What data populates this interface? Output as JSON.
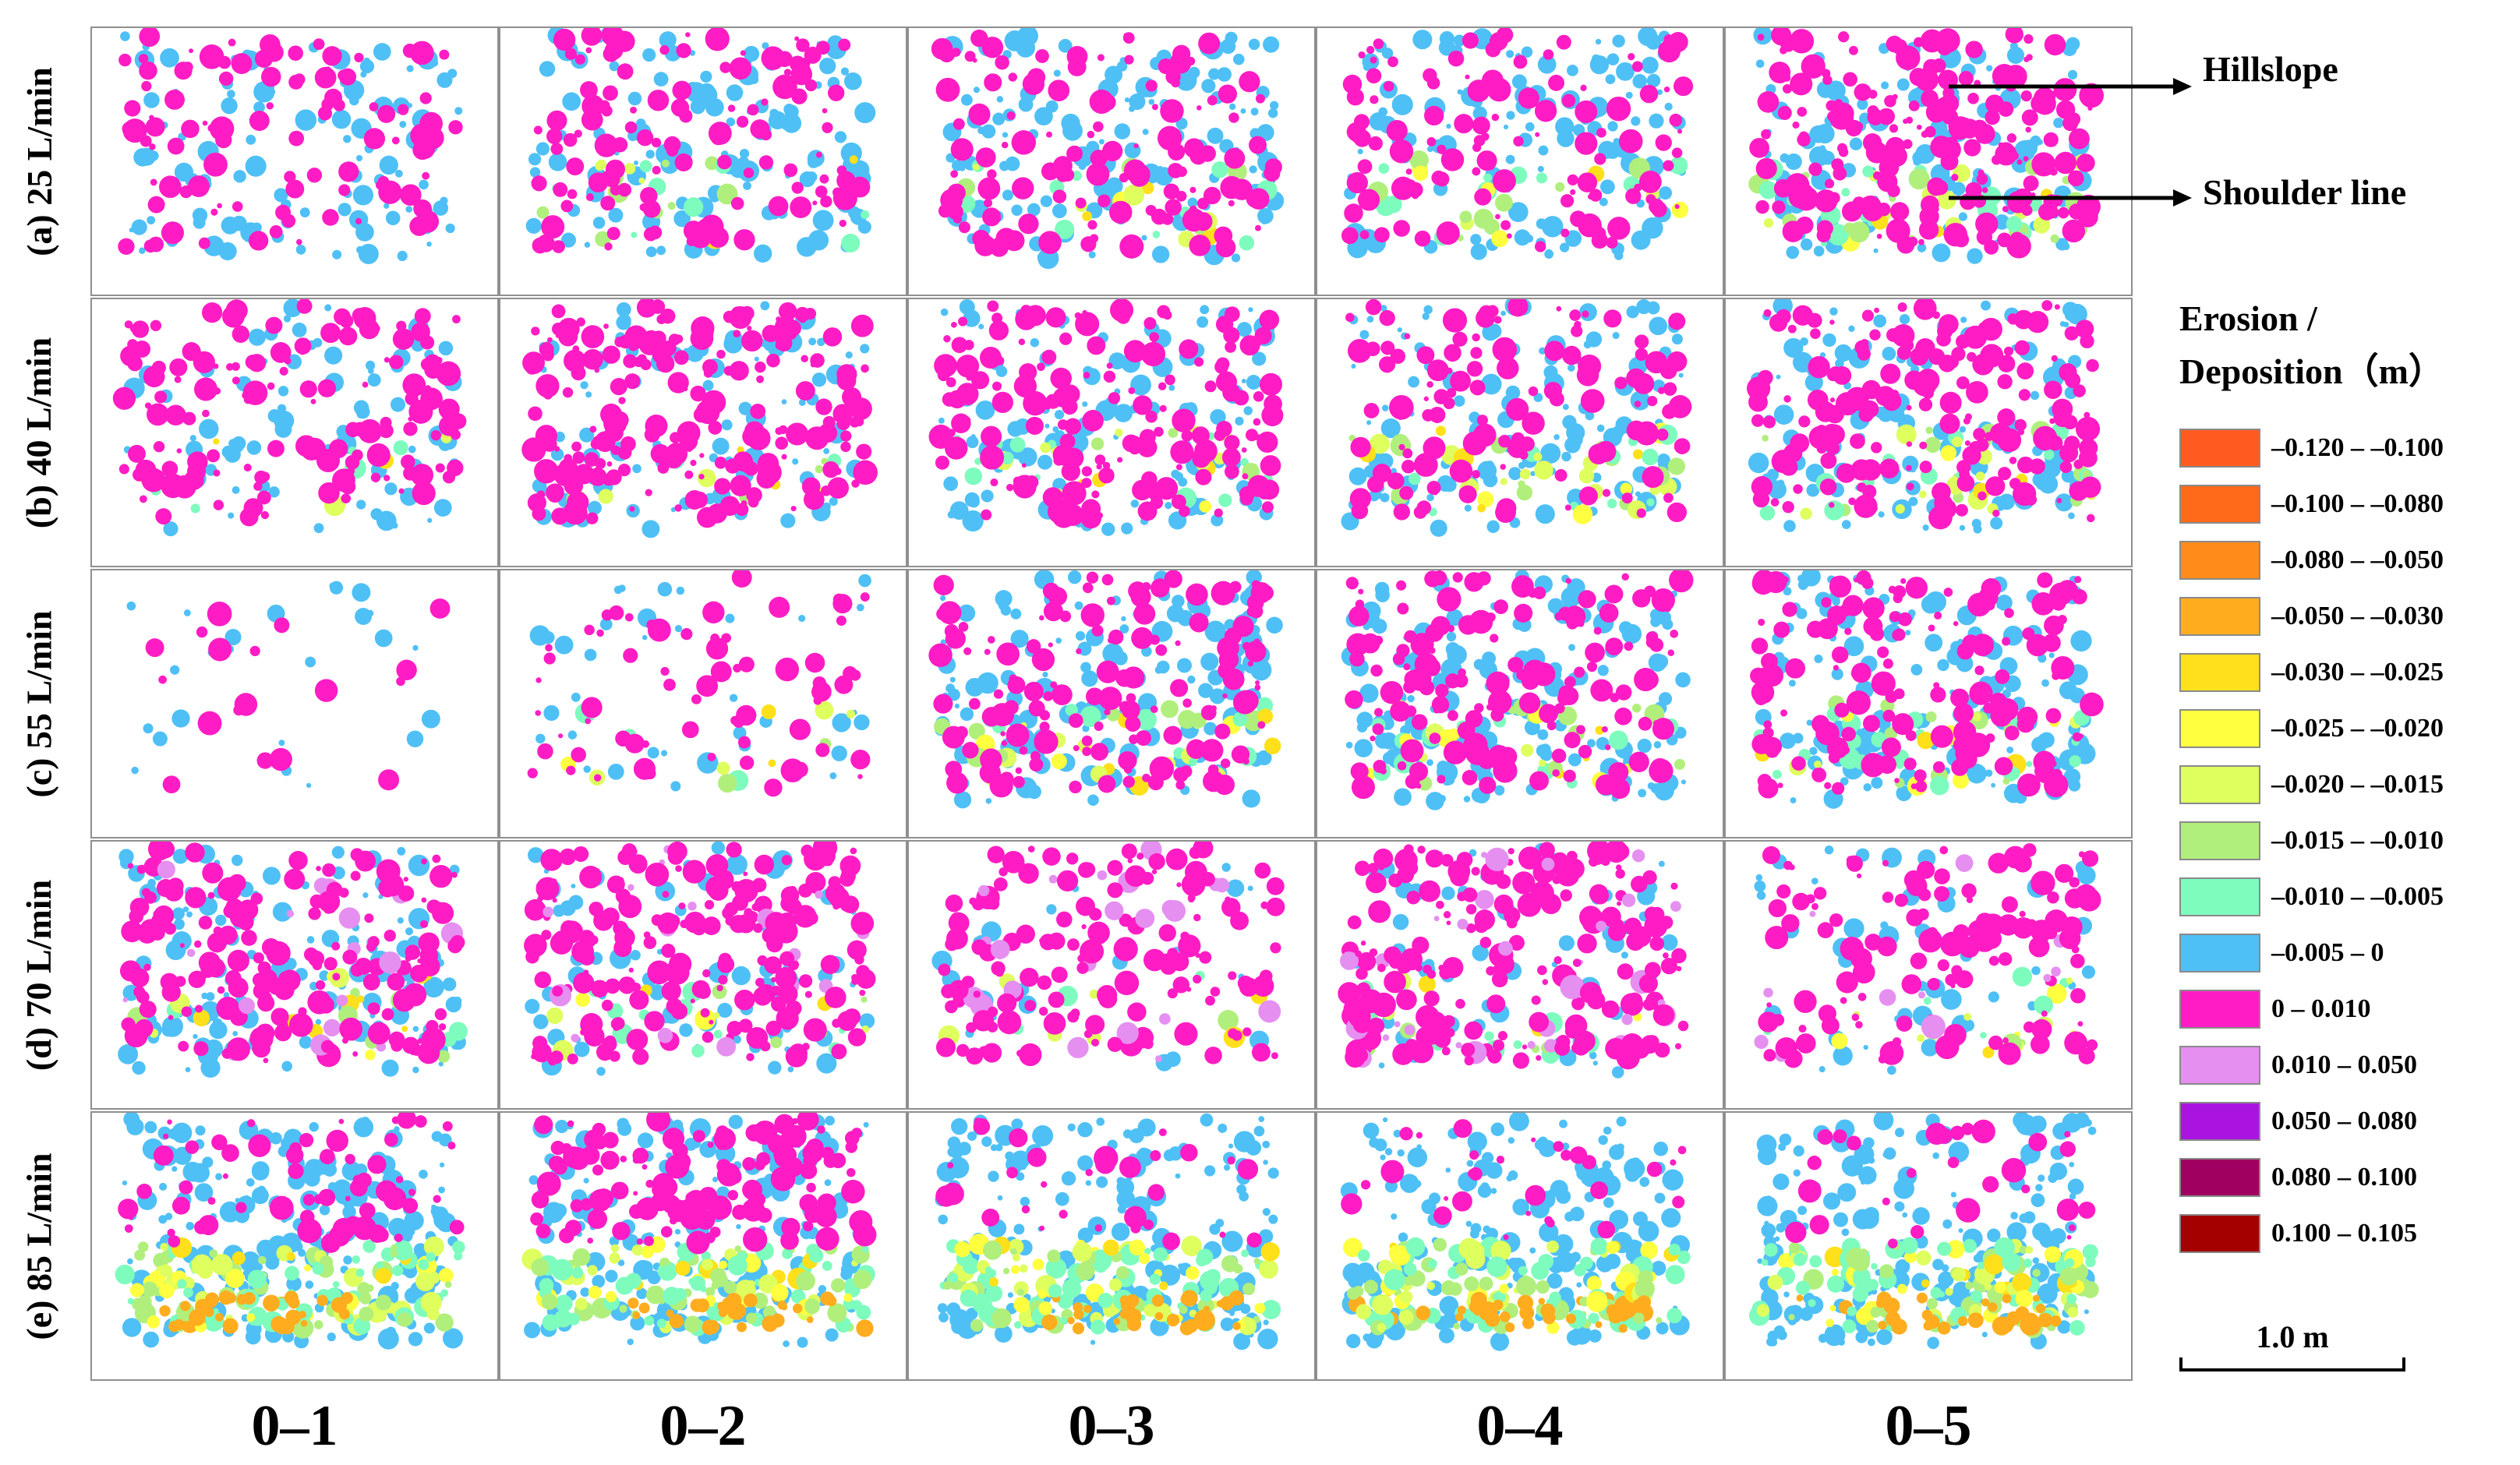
{
  "rows": [
    {
      "label": "(a) 25 L/min"
    },
    {
      "label": "(b) 40 L/min"
    },
    {
      "label": "(c) 55 L/min"
    },
    {
      "label": "(d) 70 L/min"
    },
    {
      "label": "(e) 85 L/min"
    }
  ],
  "columns": [
    {
      "label": "0–1"
    },
    {
      "label": "0–2"
    },
    {
      "label": "0–3"
    },
    {
      "label": "0–4"
    },
    {
      "label": "0–5"
    }
  ],
  "annotations": {
    "hillslope": "Hillslope",
    "shoulder_line": "Shoulder line"
  },
  "legend": {
    "title_line1": "Erosion /",
    "title_line2": "Deposition（m）",
    "items": [
      {
        "label": "–0.120 – –0.100",
        "color": "#ff5a1f"
      },
      {
        "label": "–0.100 – –0.080",
        "color": "#ff6a1a"
      },
      {
        "label": "–0.080 – –0.050",
        "color": "#ff8c1a"
      },
      {
        "label": "–0.050 – –0.030",
        "color": "#ffad1f"
      },
      {
        "label": "–0.030 – –0.025",
        "color": "#ffe01a"
      },
      {
        "label": "–0.025 – –0.020",
        "color": "#ffff40"
      },
      {
        "label": "–0.020 – –0.015",
        "color": "#dfff5e"
      },
      {
        "label": "–0.015 – –0.010",
        "color": "#b0ef7c"
      },
      {
        "label": "–0.010 – –0.005",
        "color": "#7dfcbe"
      },
      {
        "label": "–0.005 – 0",
        "color": "#4fc0f5"
      },
      {
        "label": "0 – 0.010",
        "color": "#ff1cc4"
      },
      {
        "label": "0.010 – 0.050",
        "color": "#e58ff0"
      },
      {
        "label": "0.050 – 0.080",
        "color": "#a914e0"
      },
      {
        "label": "0.080 – 0.100",
        "color": "#a0005f"
      },
      {
        "label": "0.100 – 0.105",
        "color": "#a40000"
      }
    ]
  },
  "scale_bar": {
    "label": "1.0 m"
  }
}
